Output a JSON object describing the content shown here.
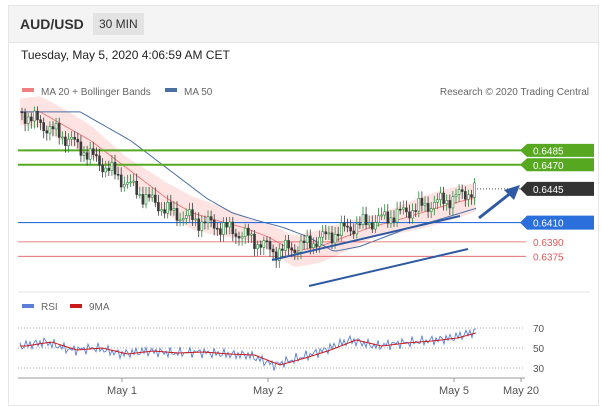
{
  "header": {
    "pair": "AUD/USD",
    "timeframe": "30 MIN"
  },
  "timestamp": "Tuesday, May 5, 2020 4:06:59 AM CET",
  "legend": {
    "bb": "MA 20 + Bollinger Bands",
    "ma50": "MA 50",
    "credit": "Research © 2020 Trading Central"
  },
  "rsi_legend": {
    "rsi": "RSI",
    "ma9": "9MA"
  },
  "colors": {
    "resistance": "#55a81f",
    "support": "#2a6fdb",
    "low_support": "#e05a5a",
    "current": "#333333",
    "bb_fill": "#fddada",
    "ma20": "#f08080",
    "ma50": "#4a6fa5",
    "rsi": "#5b7fd8",
    "rsi_ma": "#cc1b1b",
    "candle_up": "#2c8a3c",
    "candle_down": "#3a3a3a"
  },
  "chart_data": {
    "type": "line",
    "title": "AUD/USD 30 MIN",
    "xlabel": "",
    "ylabel": "",
    "x_ticks": [
      "May 1",
      "May 2",
      "May 5",
      "May 20"
    ],
    "ylim": [
      0.634,
      0.653
    ],
    "levels": [
      {
        "label": "0.6485",
        "value": 0.6485,
        "kind": "resistance"
      },
      {
        "label": "0.6470",
        "value": 0.647,
        "kind": "resistance"
      },
      {
        "label": "0.6445",
        "value": 0.6445,
        "kind": "current"
      },
      {
        "label": "0.6410",
        "value": 0.641,
        "kind": "support"
      },
      {
        "label": "0.6390",
        "value": 0.639,
        "kind": "support-low"
      },
      {
        "label": "0.6375",
        "value": 0.6375,
        "kind": "support-low"
      }
    ],
    "price_path": [
      0.6525,
      0.651,
      0.6495,
      0.6475,
      0.6455,
      0.6435,
      0.642,
      0.6412,
      0.6405,
      0.6395,
      0.638,
      0.6385,
      0.6395,
      0.6405,
      0.6412,
      0.642,
      0.6428,
      0.6435,
      0.6445
    ],
    "rsi": {
      "ylim": [
        20,
        80
      ],
      "ticks": [
        70,
        50,
        30
      ],
      "path": [
        52,
        56,
        48,
        50,
        44,
        47,
        45,
        46,
        44,
        43,
        33,
        40,
        48,
        58,
        52,
        55,
        57,
        60,
        67
      ]
    }
  }
}
